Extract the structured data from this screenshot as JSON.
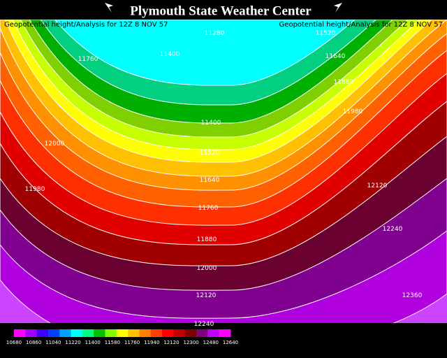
{
  "header": {
    "title": "Plymouth State Weather Center"
  },
  "subtitle_left": "Geopotential height/Analysis for 12Z 8 NOV 57",
  "subtitle_right": "Geopotential height/Analysis for 12Z 8 NOV 57",
  "contour_labels": [
    "11280",
    "11400",
    "11760",
    "11520",
    "11640",
    "11880",
    "11980",
    "12000",
    "11400",
    "11520",
    "11640",
    "11760",
    "11880",
    "12000",
    "12120",
    "12240",
    "11980",
    "12120",
    "12240",
    "12360"
  ],
  "colorbar": {
    "labels": [
      "10680",
      "10860",
      "11040",
      "11220",
      "11400",
      "11580",
      "11760",
      "11940",
      "12120",
      "12300",
      "12480",
      "12640"
    ]
  }
}
